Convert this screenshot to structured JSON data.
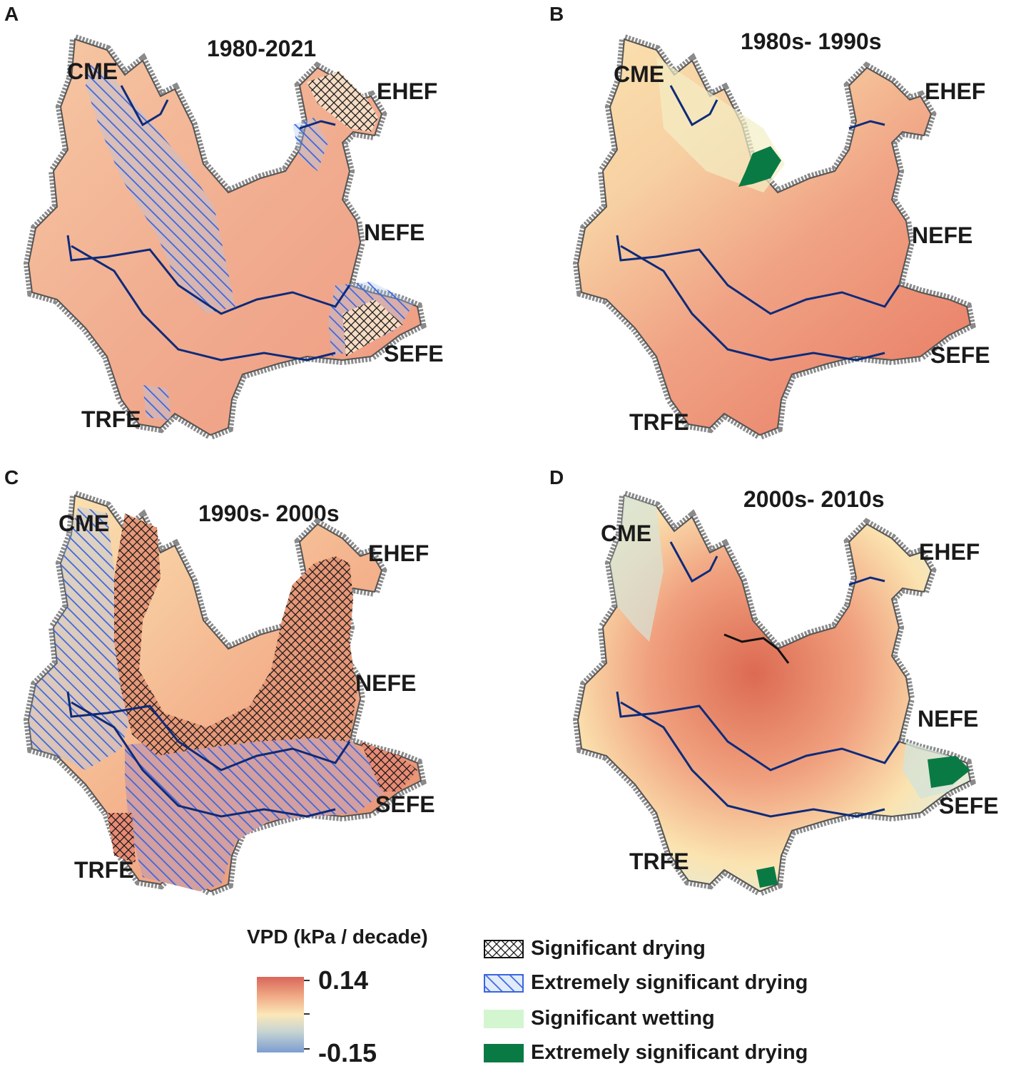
{
  "panels": [
    {
      "id": "A",
      "label": "A",
      "title": "1980-2021"
    },
    {
      "id": "B",
      "label": "B",
      "title": "1980s- 1990s"
    },
    {
      "id": "C",
      "label": "C",
      "title": "1990s- 2000s"
    },
    {
      "id": "D",
      "label": "D",
      "title": "2000s- 2010s"
    }
  ],
  "regions": {
    "cme": "CME",
    "ehef": "EHEF",
    "nefe": "NEFE",
    "sefe": "SEFE",
    "trfe": "TRFE"
  },
  "legend": {
    "colorbar_title": "VPD (kPa / decade)",
    "max_value": "0.14",
    "min_value": "-0.15",
    "colors": {
      "high": "#d9665a",
      "mid": "#fbe8b8",
      "low": "#7c9dd0"
    },
    "items": [
      {
        "label": "Significant drying",
        "swatch": "cross-hatch-black"
      },
      {
        "label": "Extremely significant drying",
        "swatch": "diagonal-hatch-blue"
      },
      {
        "label": "Significant wetting",
        "swatch": "light-green",
        "color": "#d3f5cf"
      },
      {
        "label": "Extremely significant drying",
        "swatch": "dark-green",
        "color": "#0a7a45"
      }
    ]
  },
  "map_colors": {
    "outline_halo": "#8a8a8a",
    "rivers": "#0d2b7a",
    "hatch_blue": "#3a66e0",
    "dark_green": "#0a7a45",
    "light_green": "#d3f5cf"
  }
}
